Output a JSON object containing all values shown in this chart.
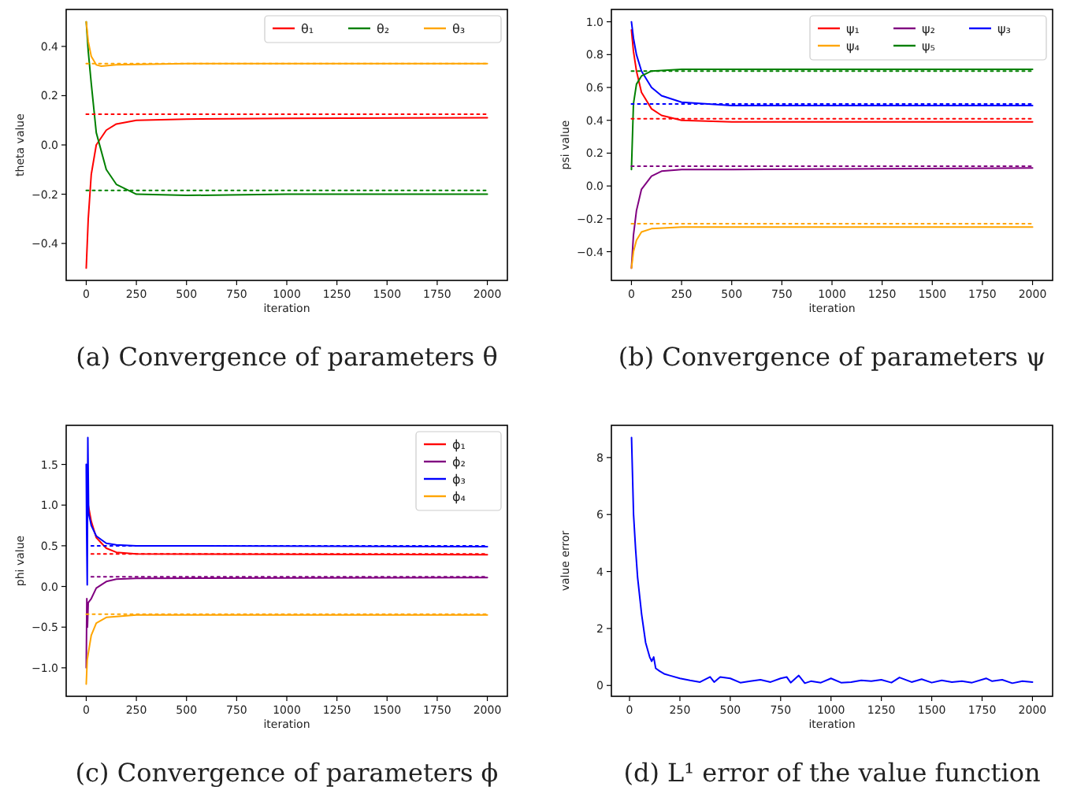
{
  "chart_data": [
    {
      "type": "line",
      "xlabel": "iteration",
      "ylabel": "theta value",
      "annotations": [
        "(a) Convergence of parameters θ"
      ],
      "xlim": [
        -100,
        2100
      ],
      "ylim": [
        -0.55,
        0.55
      ],
      "xticks": [
        0,
        250,
        500,
        750,
        1000,
        1250,
        1500,
        1750,
        2000
      ],
      "yticks": [
        {
          "value": -0.4,
          "label": "−0.4"
        },
        {
          "value": -0.2,
          "label": "−0.2"
        },
        {
          "value": 0,
          "label": "0.0"
        },
        0.2,
        0.4
      ],
      "legend": "top right",
      "series": [
        {
          "name": "θ₁",
          "color": "#ff0000",
          "x": [
            0,
            10,
            25,
            50,
            100,
            150,
            250,
            500,
            1000,
            2000
          ],
          "values": [
            -0.5,
            -0.3,
            -0.12,
            0.0,
            0.06,
            0.085,
            0.1,
            0.105,
            0.108,
            0.11
          ]
        },
        {
          "name": "θ₂",
          "color": "#008000",
          "x": [
            0,
            10,
            25,
            50,
            100,
            150,
            250,
            500,
            1000,
            2000
          ],
          "values": [
            0.5,
            0.38,
            0.25,
            0.05,
            -0.1,
            -0.16,
            -0.2,
            -0.205,
            -0.2,
            -0.2
          ]
        },
        {
          "name": "θ₃",
          "color": "#ffa500",
          "x": [
            0,
            10,
            25,
            50,
            75,
            150,
            500,
            2000
          ],
          "values": [
            0.5,
            0.42,
            0.36,
            0.325,
            0.32,
            0.325,
            0.33,
            0.33
          ]
        },
        {
          "color": "#ff0000",
          "line_style": "dotted",
          "x": [
            0,
            2000
          ],
          "values": [
            0.125,
            0.125
          ]
        },
        {
          "color": "#008000",
          "line_style": "dotted",
          "x": [
            0,
            2000
          ],
          "values": [
            -0.185,
            -0.185
          ]
        },
        {
          "color": "#ffa500",
          "line_style": "dotted",
          "x": [
            0,
            2000
          ],
          "values": [
            0.33,
            0.33
          ]
        }
      ]
    },
    {
      "type": "line",
      "xlabel": "iteration",
      "ylabel": "psi value",
      "annotations": [
        "(b) Convergence of parameters ψ"
      ],
      "xlim": [
        -100,
        2100
      ],
      "ylim": [
        -0.575,
        1.075
      ],
      "xticks": [
        0,
        250,
        500,
        750,
        1000,
        1250,
        1500,
        1750,
        2000
      ],
      "yticks": [
        {
          "value": -0.4,
          "label": "−0.4"
        },
        {
          "value": -0.2,
          "label": "−0.2"
        },
        {
          "value": 0,
          "label": "0.0"
        },
        0.2,
        0.4,
        0.6,
        0.8,
        {
          "value": 1,
          "label": "1.0"
        }
      ],
      "legend": "top right",
      "series": [
        {
          "name": "ψ₁",
          "color": "#ff0000",
          "x": [
            0,
            10,
            25,
            50,
            100,
            150,
            250,
            500,
            2000
          ],
          "values": [
            0.95,
            0.82,
            0.7,
            0.57,
            0.47,
            0.43,
            0.4,
            0.39,
            0.39
          ]
        },
        {
          "name": "ψ₂",
          "color": "#800080",
          "x": [
            0,
            10,
            25,
            50,
            100,
            150,
            250,
            500,
            2000
          ],
          "values": [
            -0.5,
            -0.3,
            -0.15,
            -0.02,
            0.06,
            0.09,
            0.1,
            0.1,
            0.11
          ]
        },
        {
          "name": "ψ₃",
          "color": "#0000ff",
          "x": [
            0,
            10,
            25,
            50,
            100,
            150,
            250,
            500,
            2000
          ],
          "values": [
            1.0,
            0.9,
            0.8,
            0.7,
            0.6,
            0.55,
            0.51,
            0.49,
            0.49
          ]
        },
        {
          "name": "ψ₄",
          "color": "#ffa500",
          "x": [
            0,
            10,
            25,
            50,
            100,
            250,
            2000
          ],
          "values": [
            -0.5,
            -0.4,
            -0.33,
            -0.28,
            -0.26,
            -0.25,
            -0.25
          ]
        },
        {
          "name": "ψ₅",
          "color": "#008000",
          "x": [
            0,
            10,
            25,
            50,
            100,
            250,
            2000
          ],
          "values": [
            0.1,
            0.5,
            0.62,
            0.67,
            0.7,
            0.71,
            0.71
          ]
        },
        {
          "color": "#ff0000",
          "line_style": "dotted",
          "x": [
            0,
            2000
          ],
          "values": [
            0.41,
            0.41
          ]
        },
        {
          "color": "#800080",
          "line_style": "dotted",
          "x": [
            0,
            2000
          ],
          "values": [
            0.12,
            0.12
          ]
        },
        {
          "color": "#0000ff",
          "line_style": "dotted",
          "x": [
            0,
            2000
          ],
          "values": [
            0.5,
            0.5
          ]
        },
        {
          "color": "#ffa500",
          "line_style": "dotted",
          "x": [
            0,
            2000
          ],
          "values": [
            -0.23,
            -0.23
          ]
        },
        {
          "color": "#008000",
          "line_style": "dotted",
          "x": [
            0,
            2000
          ],
          "values": [
            0.7,
            0.7
          ]
        }
      ]
    },
    {
      "type": "line",
      "xlabel": "iteration",
      "ylabel": "phi value",
      "annotations": [
        "(c) Convergence of parameters ϕ"
      ],
      "xlim": [
        -100,
        2100
      ],
      "ylim": [
        -1.35,
        1.98
      ],
      "xticks": [
        0,
        250,
        500,
        750,
        1000,
        1250,
        1500,
        1750,
        2000
      ],
      "yticks": [
        {
          "value": -1,
          "label": "−1.0"
        },
        {
          "value": -0.5,
          "label": "−0.5"
        },
        {
          "value": 0,
          "label": "0.0"
        },
        0.5,
        {
          "value": 1,
          "label": "1.0"
        },
        1.5
      ],
      "legend": "top right",
      "series": [
        {
          "name": "ϕ₁",
          "color": "#ff0000",
          "x": [
            10,
            25,
            50,
            100,
            150,
            250,
            2000
          ],
          "values": [
            1.0,
            0.8,
            0.6,
            0.47,
            0.42,
            0.4,
            0.39
          ]
        },
        {
          "name": "ϕ₂",
          "color": "#800080",
          "x": [
            0,
            3,
            6,
            10,
            25,
            50,
            100,
            150,
            250,
            2000
          ],
          "values": [
            -1.0,
            -0.15,
            -0.5,
            -0.2,
            -0.15,
            -0.02,
            0.06,
            0.09,
            0.1,
            0.11
          ]
        },
        {
          "name": "ϕ₃",
          "color": "#0000ff",
          "x": [
            0,
            2,
            5,
            8,
            12,
            25,
            50,
            100,
            150,
            250,
            2000
          ],
          "values": [
            1.5,
            0.7,
            0.02,
            1.83,
            0.9,
            0.75,
            0.62,
            0.53,
            0.51,
            0.5,
            0.49
          ]
        },
        {
          "name": "ϕ₄",
          "color": "#ffa500",
          "x": [
            0,
            5,
            25,
            50,
            100,
            250,
            2000
          ],
          "values": [
            -1.2,
            -0.9,
            -0.6,
            -0.45,
            -0.38,
            -0.35,
            -0.35
          ]
        },
        {
          "color": "#ff0000",
          "line_style": "dotted",
          "x": [
            25,
            2000
          ],
          "values": [
            0.4,
            0.4
          ]
        },
        {
          "color": "#800080",
          "line_style": "dotted",
          "x": [
            25,
            2000
          ],
          "values": [
            0.12,
            0.12
          ]
        },
        {
          "color": "#0000ff",
          "line_style": "dotted",
          "x": [
            25,
            2000
          ],
          "values": [
            0.5,
            0.5
          ]
        },
        {
          "color": "#ffa500",
          "line_style": "dotted",
          "x": [
            0,
            2000
          ],
          "values": [
            -0.34,
            -0.34
          ]
        }
      ]
    },
    {
      "type": "line",
      "xlabel": "iteration",
      "ylabel": "value error",
      "annotations": [
        "(d) L¹ error of the value function"
      ],
      "xlim": [
        -90,
        2100
      ],
      "ylim": [
        -0.38,
        9.13
      ],
      "xticks": [
        0,
        250,
        500,
        750,
        1000,
        1250,
        1500,
        1750,
        2000
      ],
      "yticks": [
        0,
        2,
        4,
        6,
        8
      ],
      "series": [
        {
          "color": "#0000ff",
          "x": [
            10,
            20,
            30,
            40,
            60,
            80,
            100,
            110,
            120,
            130,
            150,
            175,
            200,
            250,
            300,
            350,
            400,
            420,
            450,
            500,
            550,
            600,
            650,
            700,
            750,
            780,
            800,
            840,
            870,
            900,
            950,
            1000,
            1050,
            1100,
            1150,
            1200,
            1250,
            1300,
            1340,
            1400,
            1450,
            1500,
            1550,
            1600,
            1650,
            1700,
            1770,
            1800,
            1850,
            1900,
            1950,
            2000
          ],
          "values": [
            8.7,
            6.0,
            4.8,
            3.8,
            2.5,
            1.5,
            1.0,
            0.85,
            1.0,
            0.6,
            0.5,
            0.4,
            0.35,
            0.25,
            0.18,
            0.12,
            0.3,
            0.12,
            0.3,
            0.25,
            0.1,
            0.15,
            0.2,
            0.12,
            0.25,
            0.3,
            0.1,
            0.35,
            0.08,
            0.15,
            0.1,
            0.25,
            0.1,
            0.12,
            0.18,
            0.15,
            0.2,
            0.1,
            0.28,
            0.12,
            0.22,
            0.1,
            0.18,
            0.12,
            0.15,
            0.1,
            0.25,
            0.15,
            0.2,
            0.08,
            0.15,
            0.12
          ]
        }
      ]
    }
  ]
}
